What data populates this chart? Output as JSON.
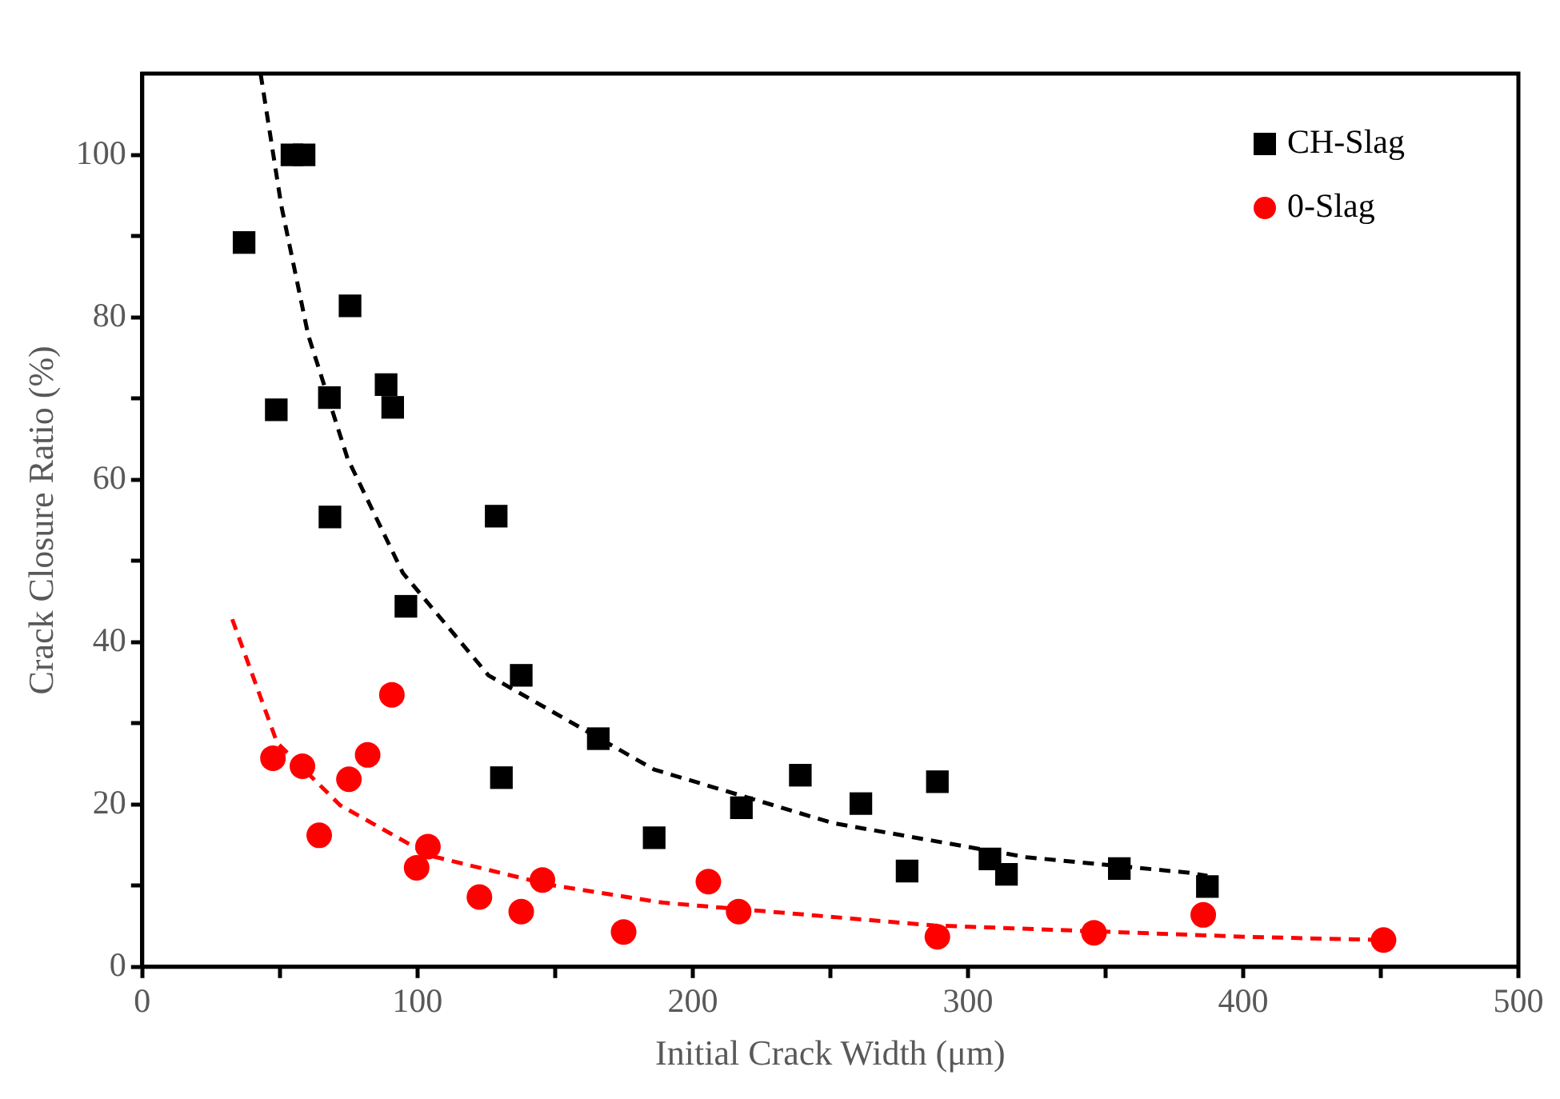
{
  "chart_data": {
    "type": "scatter",
    "xlabel": "Initial Crack Width (μm)",
    "ylabel": "Crack Closure Ratio (%)",
    "xlim": [
      0,
      500
    ],
    "ylim": [
      0,
      110
    ],
    "xticks": [
      0,
      {
        "value": 50,
        "label": null
      },
      100,
      {
        "value": 150,
        "label": null
      },
      200,
      {
        "value": 250,
        "label": null
      },
      300,
      {
        "value": 350,
        "label": null
      },
      400,
      {
        "value": 450,
        "label": null
      },
      500
    ],
    "yticks": [
      0,
      {
        "value": 10,
        "label": null
      },
      20,
      {
        "value": 30,
        "label": null
      },
      40,
      {
        "value": 50,
        "label": null
      },
      60,
      {
        "value": 70,
        "label": null
      },
      80,
      {
        "value": 90,
        "label": null
      },
      100
    ],
    "grid": false,
    "legend": "top right",
    "series": [
      {
        "name": "CH-Slag",
        "type": "scatter",
        "marker": "square",
        "color": "#000000",
        "x": [
          37,
          48.7,
          54.4,
          58.8,
          75.5,
          68,
          88.6,
          91,
          68.2,
          128.6,
          95.8,
          137.7,
          165.7,
          130.5,
          186,
          217.7,
          239.1,
          261.1,
          277.9,
          288.9,
          308,
          314,
          355,
          387
        ],
        "values": [
          89.2,
          68.6,
          100,
          100,
          81.4,
          70.1,
          71.7,
          68.9,
          55.4,
          55.5,
          44.4,
          35.9,
          28.1,
          23.3,
          15.9,
          19.6,
          23.6,
          20.1,
          11.8,
          22.8,
          13.3,
          11.4,
          12.1,
          9.9
        ]
      },
      {
        "name": "0-Slag",
        "type": "scatter",
        "marker": "circle",
        "color": "#ff0000",
        "x": [
          47.5,
          58.2,
          90.7,
          81.9,
          75.1,
          64.3,
          103.8,
          99.7,
          122.5,
          145.4,
          137.7,
          174.9,
          205.7,
          216.7,
          288.9,
          345.8,
          385.5,
          451
        ],
        "values": [
          25.7,
          24.7,
          33.5,
          26.1,
          23.1,
          16.2,
          14.8,
          12.2,
          8.6,
          10.7,
          6.8,
          4.3,
          10.5,
          6.8,
          3.7,
          4.2,
          6.4,
          3.3
        ]
      },
      {
        "type": "line",
        "marker": "none",
        "line_style": "dashed",
        "color": "#000000",
        "x": [
          43,
          50.5,
          60.3,
          74.6,
          94.7,
          125.8,
          186,
          251,
          321.3,
          380,
          387
        ],
        "values": [
          110,
          93.8,
          77.8,
          62.6,
          48.5,
          35.9,
          24.3,
          17.7,
          13.5,
          11.6,
          11.2
        ]
      },
      {
        "type": "line",
        "marker": "none",
        "line_style": "dashed",
        "color": "#ff0000",
        "x": [
          32.7,
          49,
          71.9,
          104.5,
          148,
          189.3,
          287.6,
          401,
          451
        ],
        "values": [
          42.8,
          27.6,
          19.9,
          13.7,
          10.1,
          7.9,
          5.1,
          3.7,
          3.3
        ]
      }
    ]
  }
}
